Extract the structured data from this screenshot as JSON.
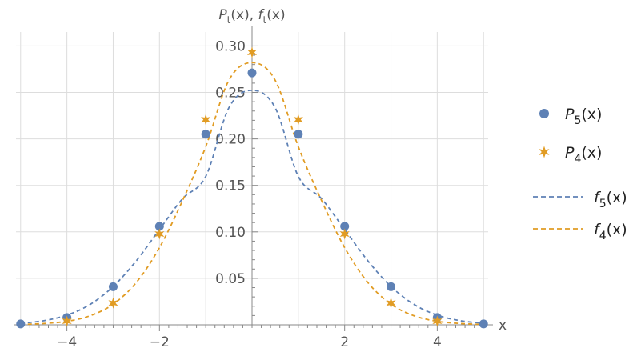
{
  "chart_data": {
    "type": "scatter",
    "title": "",
    "xlabel": "x",
    "ylabel": "Pt(x), ft(x)",
    "xlim": [
      -5.1,
      5.1
    ],
    "ylim": [
      0,
      0.315
    ],
    "grid": true,
    "legend_position": "right",
    "x_ticks": [
      -4,
      -2,
      2,
      4
    ],
    "x_tick_labels": [
      "−4",
      "−2",
      "2",
      "4"
    ],
    "y_ticks": [
      0.05,
      0.1,
      0.15,
      0.2,
      0.25,
      0.3
    ],
    "y_tick_labels": [
      "0.05",
      "0.10",
      "0.15",
      "0.20",
      "0.25",
      "0.30"
    ],
    "series": [
      {
        "name": "P5(x)",
        "kind": "points",
        "marker": "circle",
        "color": "#5e81b5",
        "x": [
          -5,
          -4,
          -3,
          -2,
          -1,
          0,
          1,
          2,
          3,
          4,
          5
        ],
        "y": [
          0.001,
          0.0078,
          0.041,
          0.106,
          0.2051,
          0.271,
          0.2051,
          0.106,
          0.041,
          0.0078,
          0.001
        ]
      },
      {
        "name": "P4(x)",
        "kind": "points",
        "marker": "star",
        "color": "#e19c24",
        "x": [
          -4,
          -3,
          -2,
          -1,
          0,
          1,
          2,
          3,
          4
        ],
        "y": [
          0.0039,
          0.0234,
          0.0977,
          0.2207,
          0.293,
          0.2207,
          0.0977,
          0.0234,
          0.0039
        ]
      },
      {
        "name": "f5(x)",
        "kind": "curve",
        "style": "dashed",
        "color": "#5e81b5",
        "x": [
          -5,
          -4.5,
          -4,
          -3.5,
          -3,
          -2.5,
          -2,
          -1.5,
          -1,
          -0.5,
          0,
          0.5,
          1,
          1.5,
          2,
          2.5,
          3,
          3.5,
          4,
          4.5,
          5
        ],
        "y": [
          0.0017,
          0.0044,
          0.0104,
          0.0219,
          0.0412,
          0.0689,
          0.1025,
          0.1357,
          0.1596,
          0.2335,
          0.2523,
          0.2335,
          0.1596,
          0.1357,
          0.1025,
          0.0689,
          0.0412,
          0.0219,
          0.0104,
          0.0044,
          0.0017
        ]
      },
      {
        "name": "f4(x)",
        "kind": "curve",
        "style": "dashed",
        "color": "#e19c24",
        "x": [
          -5,
          -4.5,
          -4,
          -3.5,
          -3,
          -2.5,
          -2,
          -1.5,
          -1,
          -0.5,
          0,
          0.5,
          1,
          1.5,
          2,
          2.5,
          3,
          3.5,
          4,
          4.5,
          5
        ],
        "y": [
          0.0004,
          0.0014,
          0.0038,
          0.0097,
          0.0222,
          0.0456,
          0.083,
          0.1338,
          0.1916,
          0.2631,
          0.2821,
          0.2631,
          0.1916,
          0.1338,
          0.083,
          0.0456,
          0.0222,
          0.0097,
          0.0038,
          0.0014,
          0.0004
        ]
      }
    ]
  }
}
